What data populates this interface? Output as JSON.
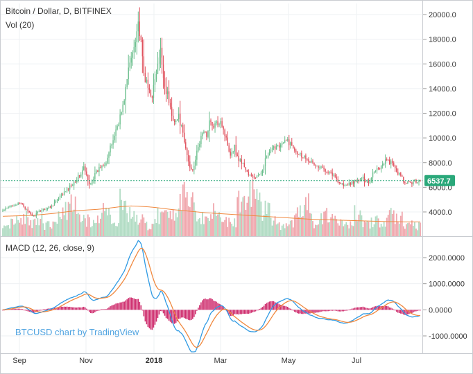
{
  "header": {
    "symbol_title": "Bitcoin / Dollar, D, BITFINEX",
    "volume_label": "Vol (20)",
    "macd_label": "MACD (12, 26, close, 9)",
    "watermark": "BTCUSD chart by TradingView",
    "last_price": "6537.7"
  },
  "colors": {
    "up": "#6cbf8e",
    "down": "#e0525e",
    "vol_up": "#b2dcc4",
    "vol_down": "#f0a8ae",
    "vol_ma": "#f0883e",
    "macd_line": "#2f9ae3",
    "signal_line": "#f0883e",
    "histogram": "#cf2f6f",
    "price_tag": "#2aa87a",
    "price_line": "#2aa87a"
  },
  "chart_data": [
    {
      "type": "candlestick",
      "title": "Bitcoin / Dollar, D, BITFINEX",
      "x_tick_labels": [
        "Sep",
        "Nov",
        "2018",
        "Mar",
        "May",
        "Jul"
      ],
      "y_tick_labels": [
        "4000.0",
        "6000.0",
        "8000.0",
        "10000.0",
        "12000.0",
        "14000.0",
        "16000.0",
        "18000.0",
        "20000.0"
      ],
      "ylim": [
        1800,
        20900
      ],
      "last_price": 6537.7,
      "series": [
        {
          "name": "BTCUSD",
          "anchors": [
            [
              0,
              4100
            ],
            [
              8,
              4600
            ],
            [
              14,
              4650
            ],
            [
              18,
              4000
            ],
            [
              22,
              3650
            ],
            [
              28,
              4200
            ],
            [
              34,
              4400
            ],
            [
              40,
              5100
            ],
            [
              46,
              5800
            ],
            [
              50,
              6300
            ],
            [
              56,
              7100
            ],
            [
              58,
              7600
            ],
            [
              62,
              6200
            ],
            [
              66,
              7000
            ],
            [
              70,
              7700
            ],
            [
              74,
              8100
            ],
            [
              78,
              9500
            ],
            [
              82,
              11000
            ],
            [
              86,
              12500
            ],
            [
              90,
              15500
            ],
            [
              93,
              17000
            ],
            [
              95,
              18200
            ],
            [
              97,
              19400
            ],
            [
              99,
              17500
            ],
            [
              101,
              15200
            ],
            [
              104,
              14000
            ],
            [
              107,
              13500
            ],
            [
              110,
              15200
            ],
            [
              113,
              17000
            ],
            [
              116,
              14200
            ],
            [
              118,
              13500
            ],
            [
              121,
              11800
            ],
            [
              124,
              11400
            ],
            [
              126,
              11700
            ],
            [
              128,
              10800
            ],
            [
              130,
              9600
            ],
            [
              132,
              8600
            ],
            [
              134,
              7600
            ],
            [
              136,
              7500
            ],
            [
              138,
              8300
            ],
            [
              140,
              9200
            ],
            [
              143,
              10500
            ],
            [
              146,
              10200
            ],
            [
              148,
              11400
            ],
            [
              150,
              10900
            ],
            [
              153,
              11100
            ],
            [
              156,
              11500
            ],
            [
              158,
              10700
            ],
            [
              161,
              9500
            ],
            [
              163,
              8700
            ],
            [
              166,
              9300
            ],
            [
              168,
              8400
            ],
            [
              170,
              8200
            ],
            [
              173,
              7700
            ],
            [
              176,
              7000
            ],
            [
              180,
              6800
            ],
            [
              184,
              6900
            ],
            [
              188,
              8200
            ],
            [
              192,
              8900
            ],
            [
              196,
              9400
            ],
            [
              200,
              9500
            ],
            [
              204,
              9800
            ],
            [
              206,
              9500
            ],
            [
              210,
              9000
            ],
            [
              214,
              8600
            ],
            [
              218,
              8400
            ],
            [
              222,
              7900
            ],
            [
              226,
              7600
            ],
            [
              230,
              7500
            ],
            [
              234,
              7300
            ],
            [
              238,
              6800
            ],
            [
              242,
              6300
            ],
            [
              246,
              6100
            ],
            [
              250,
              6400
            ],
            [
              254,
              6500
            ],
            [
              258,
              6700
            ],
            [
              262,
              6400
            ],
            [
              266,
              7400
            ],
            [
              270,
              7600
            ],
            [
              274,
              8200
            ],
            [
              278,
              8000
            ],
            [
              282,
              7300
            ],
            [
              285,
              6900
            ],
            [
              288,
              6300
            ],
            [
              292,
              6350
            ],
            [
              296,
              6500
            ],
            [
              298,
              6540
            ]
          ]
        }
      ]
    },
    {
      "type": "bar",
      "title": "Vol (20)",
      "ylim": [
        0,
        20000
      ],
      "series": [
        {
          "name": "Vol (20)",
          "values": [
            6000,
            7000,
            9000,
            6000,
            8000,
            5000,
            9000,
            11000,
            14000,
            8000,
            7000,
            10000,
            12000,
            6000,
            15000,
            11000,
            7000,
            5000,
            9000,
            10000,
            12000,
            18000,
            14000,
            9000,
            8000,
            12000,
            7000,
            6000,
            16000,
            21000,
            17000,
            12000,
            8000,
            5000,
            7000,
            11000,
            14000,
            6000,
            9000,
            7000,
            8000,
            6000,
            10000,
            5000,
            7000,
            6000,
            9000,
            8000,
            6000,
            5000
          ]
        },
        {
          "name": "Vol (20)",
          "values": [
            7500,
            7600,
            7700,
            7800,
            8000,
            8300,
            8600,
            9000,
            9400,
            9700,
            9900,
            10100,
            10400,
            10800,
            11200,
            11400,
            11300,
            11100,
            10800,
            10400,
            10000,
            9700,
            9400,
            9100,
            8800,
            8600,
            8400,
            8200,
            8000,
            7800,
            7600,
            7400,
            7200,
            7000,
            6800,
            6600,
            6400,
            6300,
            6200,
            6100,
            6000,
            5900,
            5800,
            5700,
            5600,
            5500,
            5500,
            5400,
            5400,
            5400
          ]
        }
      ]
    },
    {
      "type": "line",
      "title": "MACD (12, 26, close, 9)",
      "y_tick_labels": [
        "-1000.0000",
        "0.0000",
        "1000.0000",
        "2000.0000"
      ],
      "ylim": [
        -1600,
        2600
      ]
    }
  ]
}
